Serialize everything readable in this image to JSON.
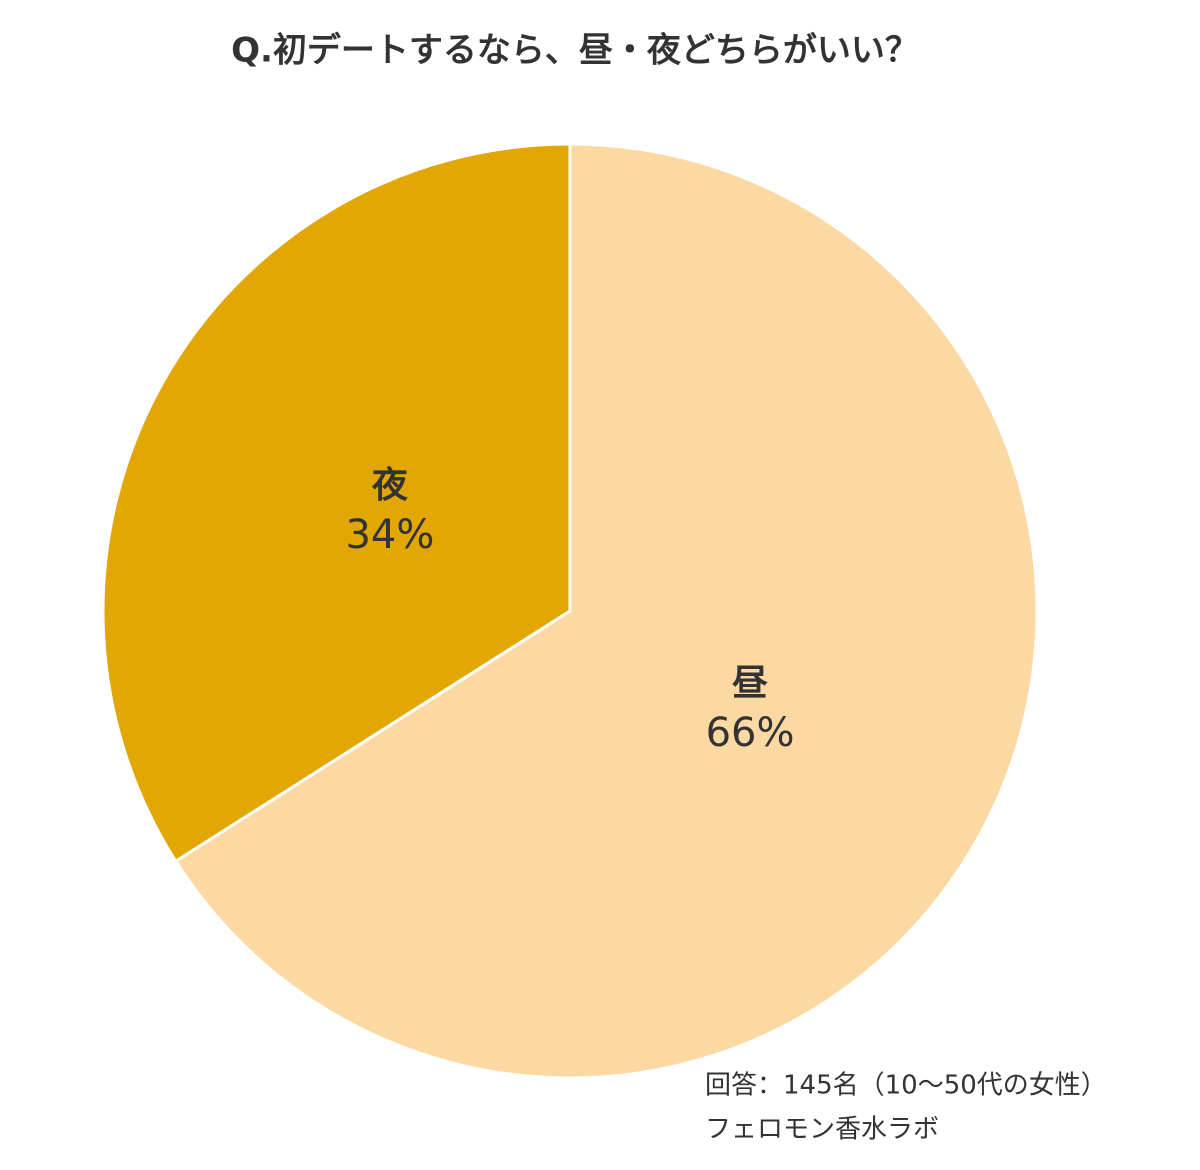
{
  "chart_data": {
    "type": "pie",
    "title": "Q.初デートするなら、昼・夜どちらがいい？",
    "categories": [
      "昼",
      "夜"
    ],
    "values": [
      66,
      34
    ],
    "value_labels": [
      "66%",
      "34%"
    ],
    "colors": [
      "#fcd9a2",
      "#e2a703"
    ],
    "notes": [
      "回答：145名（10～50代の女性）",
      "フェロモン香水ラボ"
    ]
  }
}
